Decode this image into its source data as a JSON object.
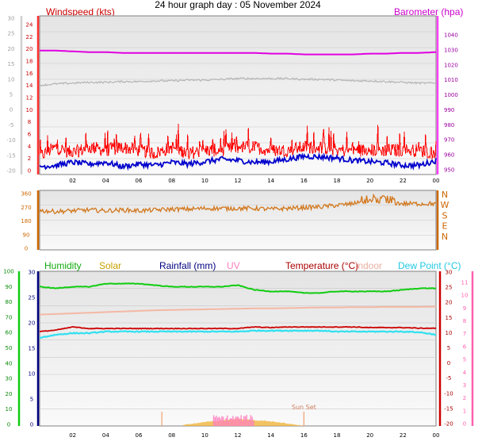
{
  "title": "24 hour graph day : 05 November 2024",
  "colors": {
    "wind_gust": "#ff0000",
    "wind_avg": "#0000cc",
    "barometer": "#e000e0",
    "grey_series": "#b4b4b4",
    "wind_dir": "#d2781e",
    "humidity": "#11cc11",
    "solar": "#f0b030",
    "rain": "#000080",
    "uv": "#ff80c0",
    "temperature": "#cc0000",
    "indoor": "#f4b8a4",
    "dew_point": "#30e0f0",
    "left_axis_bar": "#d0d0d0",
    "dir_axis": "#cc6600"
  },
  "time_labels": [
    "02",
    "04",
    "06",
    "08",
    "10",
    "12",
    "14",
    "16",
    "18",
    "20",
    "22",
    "00"
  ],
  "chart_data": [
    {
      "id": "wind_pressure",
      "type": "line",
      "labels": {
        "left": "Windspeed (kts)",
        "right": "Barometer (hpa)"
      },
      "left_outer_ticks": [
        "30",
        "25",
        "20",
        "15",
        "10",
        "5",
        "0",
        "-5",
        "-10",
        "-15",
        "-20"
      ],
      "left_inner_ticks": [
        "24",
        "22",
        "20",
        "18",
        "16",
        "14",
        "12",
        "10",
        "8",
        "6",
        "4",
        "2",
        "0"
      ],
      "right_ticks": [
        "1040",
        "1030",
        "1020",
        "1010",
        "1000",
        "990",
        "980",
        "970",
        "960",
        "950"
      ],
      "ylim_wind": [
        0,
        25
      ],
      "ylim_baro": [
        945,
        1050
      ],
      "x": [
        0,
        1,
        2,
        3,
        4,
        5,
        6,
        7,
        8,
        9,
        10,
        11,
        12,
        13,
        14,
        15,
        16,
        17,
        18,
        19,
        20,
        21,
        22,
        23,
        24
      ],
      "series": [
        {
          "key": "wind_gust",
          "values": [
            2.5,
            4,
            3,
            4,
            3.5,
            4,
            3.5,
            3,
            4,
            3,
            3.5,
            3.5,
            4,
            4,
            3.5,
            3.5,
            4,
            4,
            3.5,
            3.5,
            3.5,
            3.5,
            3.5,
            3.5,
            3
          ]
        },
        {
          "key": "wind_avg",
          "values": [
            0.8,
            1,
            1.5,
            1.2,
            1.5,
            0.8,
            1.2,
            1,
            1.5,
            1.2,
            1.6,
            2,
            1.8,
            1.5,
            1.6,
            2,
            2.5,
            2.4,
            2.2,
            1.8,
            1.6,
            1.4,
            1,
            1,
            1.8
          ]
        },
        {
          "key": "barometer",
          "values": [
            1027,
            1027,
            1026.5,
            1026,
            1026,
            1025.5,
            1025.5,
            1025.5,
            1025.5,
            1025.5,
            1025.5,
            1025.5,
            1025.5,
            1025.5,
            1025,
            1025,
            1024.5,
            1024.5,
            1024.5,
            1024.5,
            1025,
            1025,
            1025.5,
            1025.5,
            1026
          ]
        },
        {
          "key": "grey_series",
          "values": [
            1004,
            1005,
            1005.5,
            1006,
            1006,
            1006.5,
            1006.5,
            1007,
            1007,
            1007.5,
            1007.5,
            1008,
            1008.5,
            1008.5,
            1008.5,
            1008.5,
            1008,
            1008,
            1007.5,
            1007,
            1007,
            1006.5,
            1006,
            1005.5,
            1005.5
          ]
        }
      ]
    },
    {
      "id": "wind_direction",
      "type": "line",
      "left_ticks": [
        "360",
        "270",
        "180",
        "90",
        "0"
      ],
      "compass_labels": [
        "N",
        "W",
        "S",
        "E",
        "N"
      ],
      "ylim": [
        0,
        360
      ],
      "x": [
        0,
        1,
        2,
        3,
        4,
        5,
        6,
        7,
        8,
        9,
        10,
        11,
        12,
        13,
        14,
        15,
        16,
        17,
        18,
        19,
        20,
        21,
        22,
        23,
        24
      ],
      "series": [
        {
          "key": "wind_dir",
          "values": [
            240,
            235,
            240,
            245,
            240,
            245,
            240,
            245,
            250,
            250,
            255,
            255,
            255,
            255,
            250,
            255,
            260,
            265,
            275,
            285,
            300,
            295,
            285,
            285,
            285
          ]
        }
      ]
    },
    {
      "id": "temp_humidity",
      "type": "line",
      "labels": {
        "humidity": "Humidity",
        "solar": "Solar",
        "rain": "Rainfall (mm)",
        "uv": "UV",
        "temperature": "Temperature (°C)",
        "indoor": "Indoor",
        "dew_point": "Dew Point (°C)"
      },
      "humidity_ticks": [
        "100",
        "90",
        "80",
        "70",
        "60",
        "50",
        "40",
        "30",
        "20",
        "10",
        "0"
      ],
      "rain_ticks": [
        "30",
        "25",
        "20",
        "15",
        "10",
        "5",
        "0"
      ],
      "temp_ticks": [
        "30",
        "25",
        "20",
        "15",
        "10",
        "5",
        "0",
        "-5",
        "-10",
        "-15",
        "-20"
      ],
      "uv_ticks": [
        "11",
        "10",
        "9",
        "8",
        "7",
        "6",
        "5",
        "4",
        "3",
        "2",
        "1",
        "0"
      ],
      "sun_set_label": "Sun Set",
      "ylim_humidity": [
        0,
        100
      ],
      "ylim_temp": [
        -20,
        30
      ],
      "x": [
        0,
        1,
        2,
        3,
        4,
        5,
        6,
        7,
        8,
        9,
        10,
        11,
        12,
        13,
        14,
        15,
        16,
        17,
        18,
        19,
        20,
        21,
        22,
        23,
        24
      ],
      "series": [
        {
          "key": "humidity",
          "values": [
            90,
            89,
            90,
            90,
            92,
            92,
            92,
            91,
            90,
            90,
            90,
            90,
            91,
            88,
            87,
            87,
            86,
            86,
            87,
            87,
            87,
            87,
            88,
            89,
            89
          ]
        },
        {
          "key": "temperature",
          "values": [
            10.5,
            11,
            12,
            11.5,
            11.5,
            11.5,
            11.5,
            11.5,
            11.5,
            11.5,
            11.5,
            11.5,
            11.5,
            12,
            11.8,
            12,
            12,
            12,
            12,
            12,
            11.8,
            11.8,
            11.8,
            11.6,
            11.6
          ]
        },
        {
          "key": "dew_point",
          "values": [
            8.5,
            9.5,
            10,
            10,
            10.5,
            10.5,
            10.5,
            10.5,
            10.5,
            10.5,
            10.5,
            10.5,
            10.5,
            10.8,
            10.8,
            10.8,
            10.8,
            10.8,
            10.5,
            10.5,
            10.5,
            10.5,
            10.5,
            10.3,
            9.5
          ]
        },
        {
          "key": "indoor",
          "values": [
            16,
            16.2,
            16.4,
            16.6,
            16.8,
            17,
            17.2,
            17.4,
            17.5,
            17.6,
            17.7,
            17.8,
            17.9,
            18,
            18,
            18.1,
            18.2,
            18.3,
            18.3,
            18.4,
            18.4,
            18.5,
            18.5,
            18.5,
            18.6
          ]
        },
        {
          "key": "solar",
          "values": [
            0,
            0,
            0,
            0,
            0,
            0,
            0,
            0,
            0,
            2,
            5,
            7,
            9,
            7,
            6,
            3,
            0,
            0,
            0,
            0,
            0,
            0,
            0,
            0,
            0
          ]
        },
        {
          "key": "uv",
          "values": [
            0,
            0,
            0,
            0,
            0,
            0,
            0,
            0,
            0,
            0,
            0,
            0.5,
            1,
            1,
            0.8,
            0,
            0,
            0,
            0,
            0,
            0,
            0,
            0,
            0,
            0
          ]
        }
      ]
    }
  ]
}
